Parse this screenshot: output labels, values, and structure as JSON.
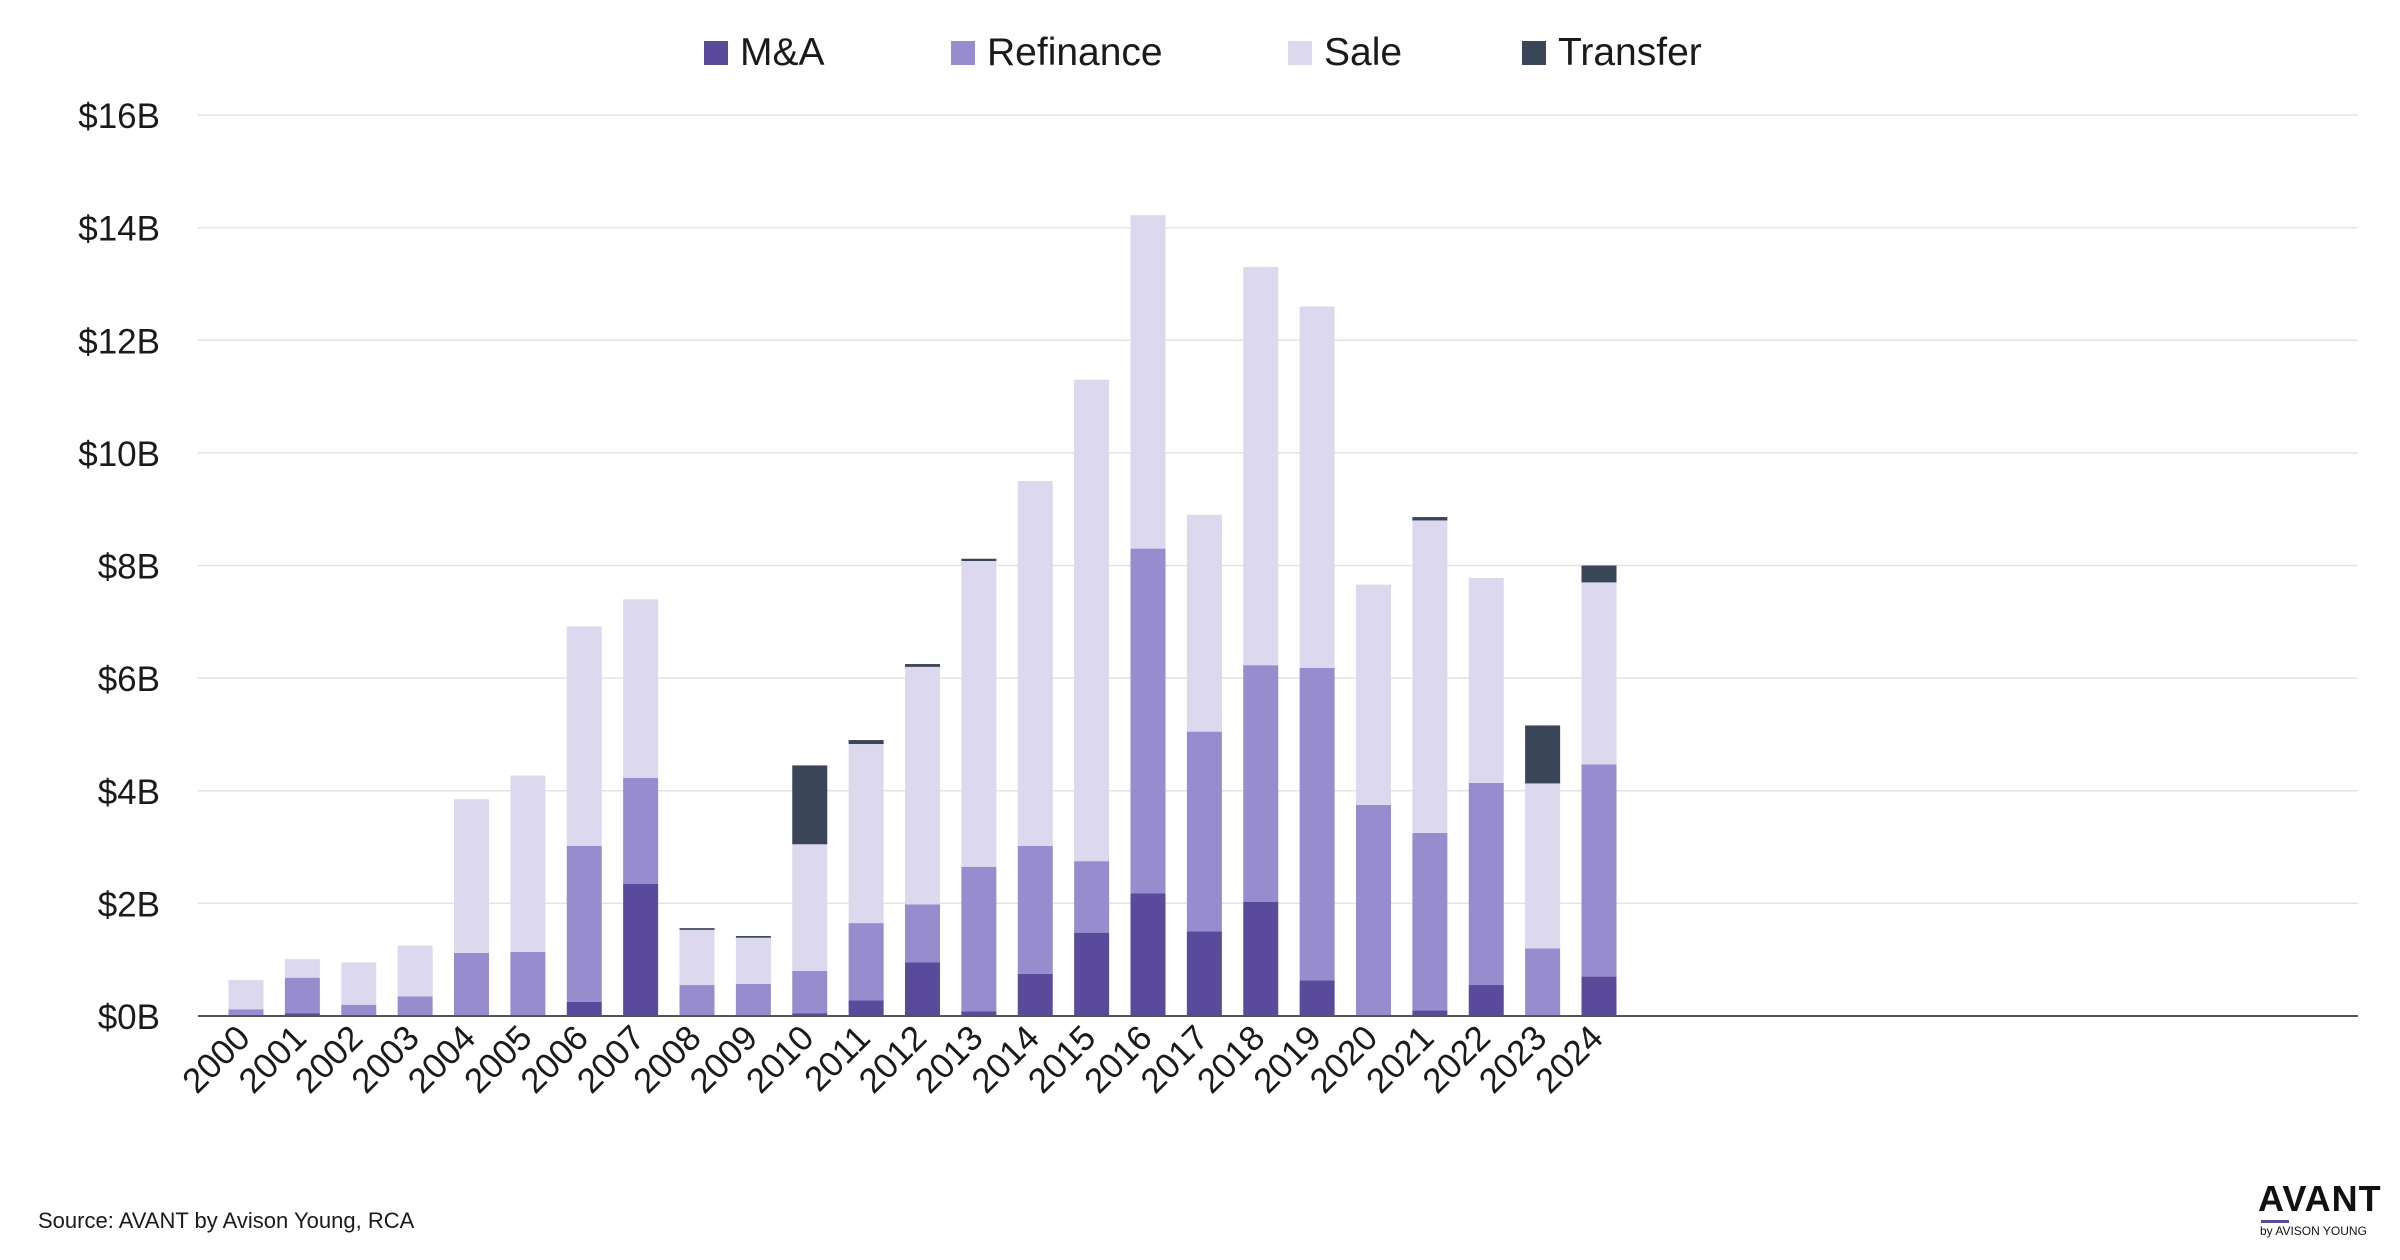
{
  "chart_data": {
    "type": "bar",
    "stacked": true,
    "categories": [
      "2000",
      "2001",
      "2002",
      "2003",
      "2004",
      "2005",
      "2006",
      "2007",
      "2008",
      "2009",
      "2010",
      "2011",
      "2012",
      "2013",
      "2014",
      "2015",
      "2016",
      "2017",
      "2018",
      "2019",
      "2020",
      "2021",
      "2022",
      "2023",
      "2024"
    ],
    "series": [
      {
        "name": "M&A",
        "color": "#5a4a9c",
        "values": [
          0.0,
          0.05,
          0.0,
          0.0,
          0.0,
          0.0,
          0.25,
          2.35,
          0.0,
          0.0,
          0.05,
          0.28,
          0.95,
          0.08,
          0.75,
          1.48,
          2.18,
          1.5,
          2.03,
          0.63,
          0.0,
          0.1,
          0.55,
          0.0,
          0.7
        ]
      },
      {
        "name": "Refinance",
        "color": "#978cce",
        "values": [
          0.12,
          0.63,
          0.2,
          0.35,
          1.12,
          1.14,
          2.77,
          1.88,
          0.55,
          0.57,
          0.75,
          1.37,
          1.03,
          2.57,
          2.27,
          1.27,
          6.12,
          3.55,
          4.2,
          5.55,
          3.75,
          3.15,
          3.59,
          1.2,
          3.77
        ]
      },
      {
        "name": "Sale",
        "color": "#dcd8ee",
        "values": [
          0.52,
          0.33,
          0.75,
          0.9,
          2.73,
          3.13,
          3.9,
          3.17,
          0.98,
          0.82,
          2.25,
          3.18,
          4.22,
          5.43,
          6.48,
          8.55,
          5.92,
          3.85,
          7.07,
          6.42,
          3.91,
          5.55,
          3.64,
          2.93,
          3.23
        ]
      },
      {
        "name": "Transfer",
        "color": "#3a4558",
        "values": [
          0.0,
          0.0,
          0.0,
          0.0,
          0.0,
          0.0,
          0.0,
          0.0,
          0.03,
          0.03,
          1.4,
          0.07,
          0.05,
          0.04,
          0.0,
          0.0,
          0.0,
          0.0,
          0.0,
          0.0,
          0.0,
          0.06,
          0.0,
          1.03,
          0.3
        ]
      }
    ],
    "y_ticks": [
      {
        "value": 0,
        "label": "$0B"
      },
      {
        "value": 2,
        "label": "$2B"
      },
      {
        "value": 4,
        "label": "$4B"
      },
      {
        "value": 6,
        "label": "$6B"
      },
      {
        "value": 8,
        "label": "$8B"
      },
      {
        "value": 10,
        "label": "$10B"
      },
      {
        "value": 12,
        "label": "$12B"
      },
      {
        "value": 14,
        "label": "$14B"
      },
      {
        "value": 16,
        "label": "$16B"
      }
    ],
    "ylim": [
      0,
      16
    ],
    "grid": true,
    "legend_position": "top-center",
    "title": "",
    "xlabel": "",
    "ylabel": ""
  },
  "source_text": "Source: AVANT by Avison Young, RCA",
  "logo": {
    "main": "AVANT",
    "sub": "by AVISON YOUNG"
  }
}
